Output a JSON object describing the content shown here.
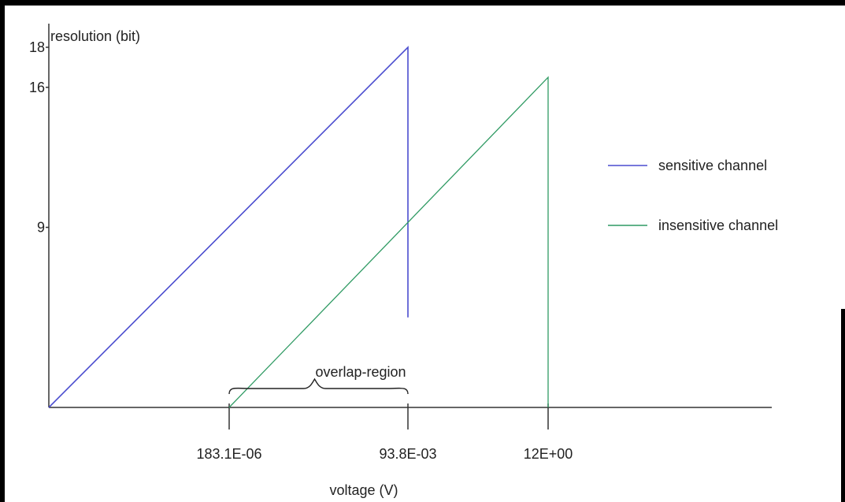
{
  "chart_data": {
    "type": "line",
    "title": "",
    "ylabel": "resolution (bit)",
    "xlabel": "voltage (V)",
    "x_ticks": [
      "183.1E-06",
      "93.8E-03",
      "12E+00"
    ],
    "y_ticks": [
      18,
      16,
      9
    ],
    "series": [
      {
        "name": "sensitive channel",
        "color": "#4a4ccf",
        "points": [
          {
            "x": "0",
            "y": 0
          },
          {
            "x": "93.8E-03",
            "y": 18
          },
          {
            "x": "93.8E-03",
            "y": 4.5
          }
        ]
      },
      {
        "name": "insensitive channel",
        "color": "#2f9a63",
        "points": [
          {
            "x": "183.1E-06",
            "y": 0
          },
          {
            "x": "12E+00",
            "y": 16.5
          },
          {
            "x": "12E+00",
            "y": 0
          }
        ]
      }
    ],
    "annotations": [
      {
        "text": "overlap-region",
        "from": "183.1E-06",
        "to": "93.8E-03"
      }
    ],
    "legend_position": "right"
  }
}
